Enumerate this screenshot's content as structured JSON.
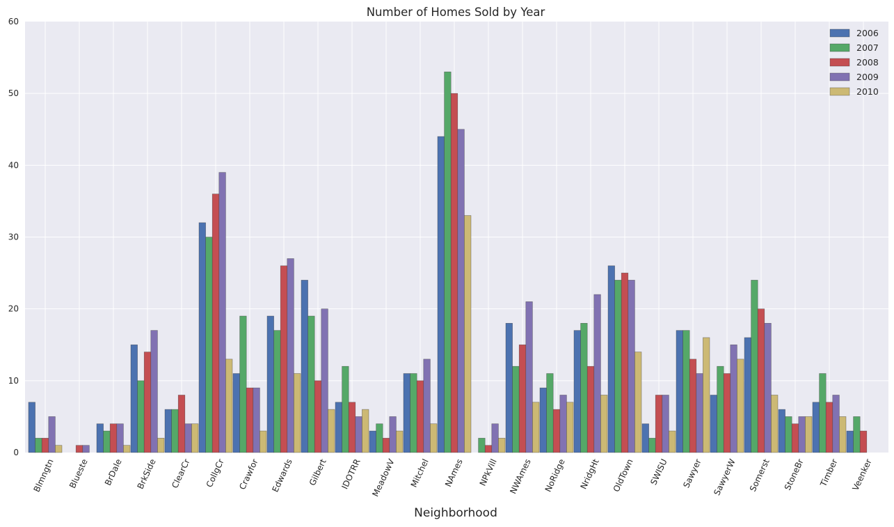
{
  "chart_data": {
    "type": "bar",
    "title": "Number of Homes Sold by Year",
    "xlabel": "Neighborhood",
    "ylabel": "",
    "ylim": [
      0,
      60
    ],
    "yticks": [
      0,
      10,
      20,
      30,
      40,
      50,
      60
    ],
    "grid": true,
    "legend_position": "top-right",
    "categories": [
      "Blmngtn",
      "Blueste",
      "BrDale",
      "BrkSide",
      "ClearCr",
      "CollgCr",
      "Crawfor",
      "Edwards",
      "Gilbert",
      "IDOTRR",
      "MeadowV",
      "Mitchel",
      "NAmes",
      "NPkVill",
      "NWAmes",
      "NoRidge",
      "NridgHt",
      "OldTown",
      "SWISU",
      "Sawyer",
      "SawyerW",
      "Somerst",
      "StoneBr",
      "Timber",
      "Veenker"
    ],
    "series": [
      {
        "name": "2006",
        "color": "#4c72b0",
        "values": [
          7,
          0,
          4,
          15,
          6,
          32,
          11,
          19,
          24,
          7,
          3,
          11,
          44,
          0,
          18,
          9,
          17,
          26,
          4,
          17,
          8,
          16,
          6,
          7,
          3
        ]
      },
      {
        "name": "2007",
        "color": "#55a868",
        "values": [
          2,
          0,
          3,
          10,
          6,
          30,
          19,
          17,
          19,
          12,
          4,
          11,
          53,
          2,
          12,
          11,
          18,
          24,
          2,
          17,
          12,
          24,
          5,
          11,
          5
        ]
      },
      {
        "name": "2008",
        "color": "#c44e52",
        "values": [
          2,
          1,
          4,
          14,
          8,
          36,
          9,
          26,
          10,
          7,
          2,
          10,
          50,
          1,
          15,
          6,
          12,
          25,
          8,
          13,
          11,
          20,
          4,
          7,
          3
        ]
      },
      {
        "name": "2009",
        "color": "#8172b2",
        "values": [
          5,
          1,
          4,
          17,
          4,
          39,
          9,
          27,
          20,
          5,
          5,
          13,
          45,
          4,
          21,
          8,
          22,
          24,
          8,
          11,
          15,
          18,
          5,
          8,
          0
        ]
      },
      {
        "name": "2010",
        "color": "#ccb974",
        "values": [
          1,
          0,
          1,
          2,
          4,
          13,
          3,
          11,
          6,
          6,
          3,
          4,
          33,
          2,
          7,
          7,
          8,
          14,
          3,
          16,
          13,
          8,
          5,
          5,
          0
        ]
      }
    ]
  }
}
